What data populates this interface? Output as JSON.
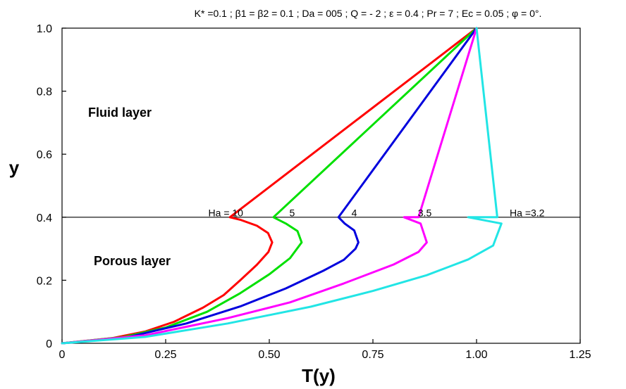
{
  "chart_data": {
    "type": "line",
    "title": "K* =0.1 ; β1 = β2 = 0.1 ; Da = 005 ; Q = - 2 ; ε = 0.4 ; Pr = 7 ; Ec = 0.05 ; φ = 0°.",
    "xlabel": "T(y)",
    "ylabel": "y",
    "xlim": [
      0,
      1.25
    ],
    "ylim": [
      0,
      1.0
    ],
    "x_ticks": [
      "0",
      "0.25",
      "0.50",
      "0.75",
      "1.00",
      "1.25"
    ],
    "y_ticks": [
      "0",
      "0.2",
      "0.4",
      "0.6",
      "0.8",
      "1.0"
    ],
    "interface_y": 0.4,
    "regions": {
      "upper": "Fluid layer",
      "lower": "Porous layer"
    },
    "grid": false,
    "series": [
      {
        "name": "Ha = 10",
        "label": "Ha = 10",
        "color": "#ff0000",
        "points": [
          [
            0,
            0
          ],
          [
            0.12,
            0.016
          ],
          [
            0.2,
            0.037
          ],
          [
            0.27,
            0.068
          ],
          [
            0.34,
            0.113
          ],
          [
            0.39,
            0.153
          ],
          [
            0.43,
            0.2
          ],
          [
            0.47,
            0.249
          ],
          [
            0.498,
            0.29
          ],
          [
            0.507,
            0.32
          ],
          [
            0.497,
            0.35
          ],
          [
            0.47,
            0.373
          ],
          [
            0.43,
            0.392
          ],
          [
            0.405,
            0.4
          ],
          [
            1.0,
            1.0
          ]
        ]
      },
      {
        "name": "5",
        "label": "5",
        "color": "#00e000",
        "points": [
          [
            0,
            0
          ],
          [
            0.15,
            0.02
          ],
          [
            0.25,
            0.05
          ],
          [
            0.35,
            0.1
          ],
          [
            0.43,
            0.159
          ],
          [
            0.5,
            0.219
          ],
          [
            0.55,
            0.27
          ],
          [
            0.578,
            0.32
          ],
          [
            0.568,
            0.356
          ],
          [
            0.54,
            0.38
          ],
          [
            0.51,
            0.4
          ],
          [
            1.0,
            1.0
          ]
        ]
      },
      {
        "name": "4",
        "label": "4",
        "color": "#0000dd",
        "points": [
          [
            0,
            0
          ],
          [
            0.15,
            0.017
          ],
          [
            0.3,
            0.063
          ],
          [
            0.43,
            0.117
          ],
          [
            0.54,
            0.174
          ],
          [
            0.63,
            0.23
          ],
          [
            0.68,
            0.265
          ],
          [
            0.708,
            0.3
          ],
          [
            0.715,
            0.32
          ],
          [
            0.705,
            0.358
          ],
          [
            0.682,
            0.38
          ],
          [
            0.667,
            0.4
          ],
          [
            1.0,
            1.0
          ]
        ]
      },
      {
        "name": "3.5",
        "label": "3.5",
        "color": "#ff00ff",
        "points": [
          [
            0,
            0
          ],
          [
            0.2,
            0.025
          ],
          [
            0.4,
            0.08
          ],
          [
            0.55,
            0.13
          ],
          [
            0.68,
            0.19
          ],
          [
            0.8,
            0.25
          ],
          [
            0.86,
            0.29
          ],
          [
            0.88,
            0.32
          ],
          [
            0.865,
            0.38
          ],
          [
            0.825,
            0.4
          ],
          [
            0.86,
            0.4
          ],
          [
            1.0,
            1.0
          ]
        ]
      },
      {
        "name": "Ha =3.2",
        "label": "Ha =3.2",
        "color": "#22e5e5",
        "points": [
          [
            0,
            0
          ],
          [
            0.2,
            0.02
          ],
          [
            0.4,
            0.063
          ],
          [
            0.6,
            0.116
          ],
          [
            0.75,
            0.166
          ],
          [
            0.88,
            0.216
          ],
          [
            0.98,
            0.266
          ],
          [
            1.04,
            0.31
          ],
          [
            1.06,
            0.38
          ],
          [
            0.98,
            0.4
          ],
          [
            1.05,
            0.4
          ],
          [
            1.0,
            1.0
          ]
        ]
      }
    ]
  }
}
